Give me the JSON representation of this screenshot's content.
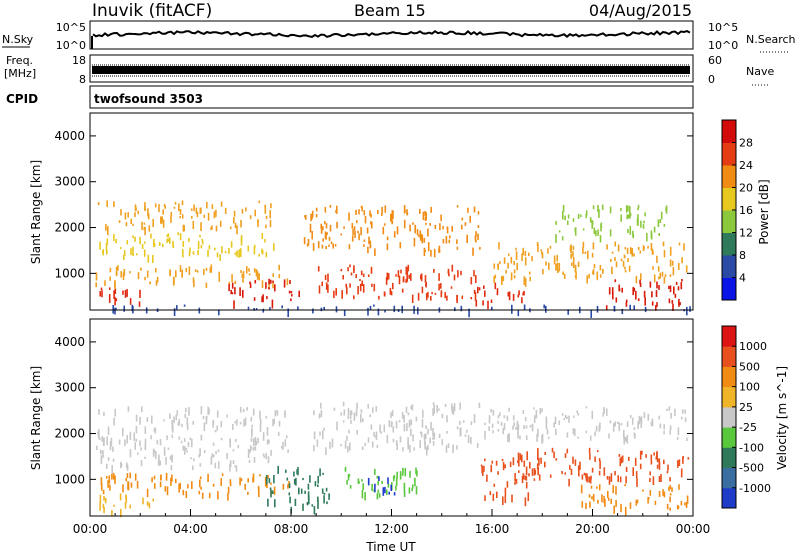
{
  "header": {
    "station": "Inuvik (fitACF)",
    "beam": "Beam 15",
    "date": "04/Aug/2015"
  },
  "top_strip": {
    "nsky_label": "N.Sky",
    "nsky_ticks": [
      "10^5",
      "10^0"
    ],
    "nsearch_label": "N.Search",
    "nsearch_ticks": [
      "10^5",
      "10^0"
    ],
    "freq_label_1": "Freq.",
    "freq_label_2": "[MHz]",
    "freq_ticks": [
      "18",
      "8"
    ],
    "nave_label": "Nave",
    "nave_ticks": [
      "60",
      "0"
    ],
    "cpid_label": "CPID",
    "cpid_value": "twofsound 3503"
  },
  "chart_data": [
    {
      "type": "heatmap",
      "name": "power-panel",
      "ylabel": "Slant Range [km]",
      "yticks": [
        "1000",
        "2000",
        "3000",
        "4000"
      ],
      "ylim": [
        200,
        4500
      ],
      "xlim": [
        0,
        24
      ],
      "colorbar_label": "Power [dB]",
      "colorbar_ticks": [
        "4",
        "8",
        "12",
        "16",
        "20",
        "24",
        "28"
      ],
      "colorbar_colors": [
        "#0a14e6",
        "#2a4aa6",
        "#2f7a5a",
        "#8cc83c",
        "#e6c81e",
        "#f08c14",
        "#e63c14",
        "#d20a0a"
      ],
      "bands": [
        {
          "t0": 0.2,
          "t1": 2.2,
          "r0": 350,
          "r1": 700,
          "c": "#e02a10"
        },
        {
          "t0": 0.2,
          "t1": 8.0,
          "r0": 800,
          "r1": 1200,
          "c": "#f0a020"
        },
        {
          "t0": 0.3,
          "t1": 7.5,
          "r0": 1400,
          "r1": 1900,
          "c": "#e6c81e"
        },
        {
          "t0": 0.3,
          "t1": 7.2,
          "r0": 2000,
          "r1": 2600,
          "c": "#f0a020"
        },
        {
          "t0": 5.5,
          "t1": 8.3,
          "r0": 400,
          "r1": 900,
          "c": "#d81a0a"
        },
        {
          "t0": 9.0,
          "t1": 15.5,
          "r0": 500,
          "r1": 1200,
          "c": "#e63c14"
        },
        {
          "t0": 8.5,
          "t1": 15.5,
          "r0": 1500,
          "r1": 2500,
          "c": "#f08c14"
        },
        {
          "t0": 15.0,
          "t1": 17.5,
          "r0": 400,
          "r1": 800,
          "c": "#e02a10"
        },
        {
          "t0": 16.0,
          "t1": 23.8,
          "r0": 900,
          "r1": 1700,
          "c": "#f0a020"
        },
        {
          "t0": 20.5,
          "t1": 23.8,
          "r0": 300,
          "r1": 900,
          "c": "#d81a0a"
        },
        {
          "t0": 18.5,
          "t1": 23.0,
          "r0": 1800,
          "r1": 2500,
          "c": "#8cc83c"
        },
        {
          "t0": 0.0,
          "t1": 24.0,
          "r0": 200,
          "r1": 320,
          "c": "#2a4aa6"
        }
      ]
    },
    {
      "type": "heatmap",
      "name": "velocity-panel",
      "ylabel": "Slant Range [km]",
      "yticks": [
        "1000",
        "2000",
        "3000",
        "4000"
      ],
      "ylim": [
        200,
        4500
      ],
      "xlim": [
        0,
        24
      ],
      "xticks": [
        "00:00",
        "04:00",
        "08:00",
        "12:00",
        "16:00",
        "20:00",
        "00:00"
      ],
      "xlabel": "Time UT",
      "colorbar_label": "Velocity [m s^-1]",
      "colorbar_ticks": [
        "1000",
        "500",
        "100",
        "25",
        "-25",
        "-100",
        "-500",
        "-1000"
      ],
      "colorbar_colors": [
        "#1e3cc8",
        "#3a6ea0",
        "#2e7a5a",
        "#5ac83c",
        "#c8c8c8",
        "#f0b428",
        "#f08c14",
        "#e8501e",
        "#dc1414"
      ],
      "bands": [
        {
          "t0": 0.2,
          "t1": 7.8,
          "r0": 1800,
          "r1": 2600,
          "c": "#c8c8c8"
        },
        {
          "t0": 0.2,
          "t1": 8.0,
          "r0": 700,
          "r1": 1150,
          "c": "#f08c14"
        },
        {
          "t0": 0.2,
          "t1": 8.0,
          "r0": 1300,
          "r1": 1750,
          "c": "#c8c8c8"
        },
        {
          "t0": 7.0,
          "t1": 9.5,
          "r0": 400,
          "r1": 1300,
          "c": "#2e7a5a"
        },
        {
          "t0": 8.8,
          "t1": 15.5,
          "r0": 1700,
          "r1": 2700,
          "c": "#c8c8c8"
        },
        {
          "t0": 10.0,
          "t1": 13.0,
          "r0": 600,
          "r1": 1300,
          "c": "#5ac83c"
        },
        {
          "t0": 11.0,
          "t1": 12.2,
          "r0": 700,
          "r1": 1100,
          "c": "#1e3cc8"
        },
        {
          "t0": 15.5,
          "t1": 17.5,
          "r0": 600,
          "r1": 1600,
          "c": "#e8501e"
        },
        {
          "t0": 17.0,
          "t1": 23.8,
          "r0": 1000,
          "r1": 1700,
          "c": "#e8501e"
        },
        {
          "t0": 19.5,
          "t1": 23.8,
          "r0": 350,
          "r1": 900,
          "c": "#f08c14"
        },
        {
          "t0": 15.5,
          "t1": 23.8,
          "r0": 1900,
          "r1": 2600,
          "c": "#c8c8c8"
        },
        {
          "t0": 0.3,
          "t1": 2.5,
          "r0": 300,
          "r1": 700,
          "c": "#f0b428"
        }
      ]
    }
  ]
}
